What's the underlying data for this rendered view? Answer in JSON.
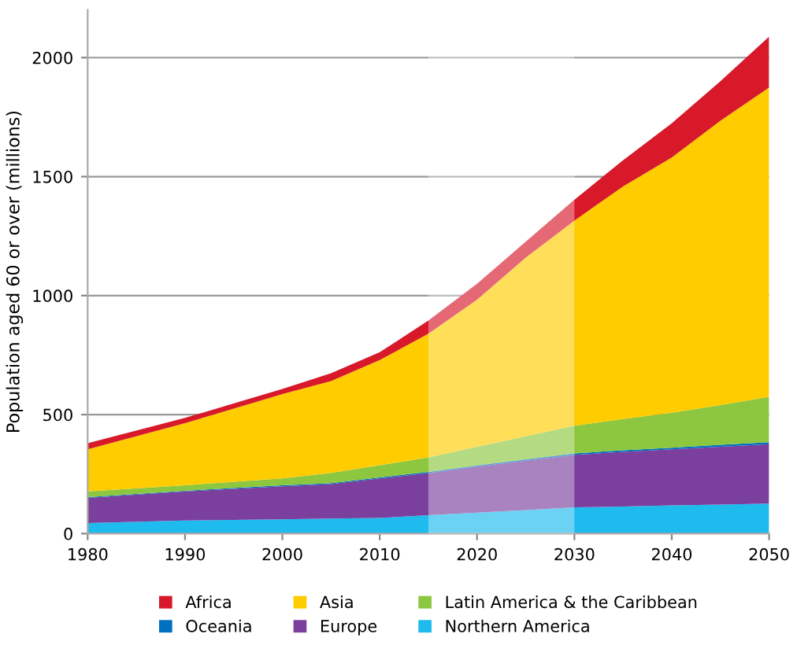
{
  "chart_data": {
    "type": "area",
    "stacked": true,
    "ylabel": "Population aged 60 or over (millions)",
    "x": [
      1980,
      1990,
      2000,
      2005,
      2010,
      2015,
      2020,
      2025,
      2030,
      2035,
      2040,
      2045,
      2050
    ],
    "series": [
      {
        "name": "Northern America",
        "color": "#1ebbee",
        "values": [
          44,
          55,
          60,
          63,
          66,
          77,
          88,
          99,
          110,
          114,
          119,
          122,
          126
        ]
      },
      {
        "name": "Europe",
        "color": "#7b3f9e",
        "values": [
          106,
          122,
          139,
          145,
          166,
          177,
          193,
          207,
          221,
          229,
          235,
          243,
          250
        ]
      },
      {
        "name": "Oceania",
        "color": "#0070c0",
        "values": [
          3,
          3,
          4,
          4,
          4,
          5,
          5,
          6,
          6,
          7,
          7,
          8,
          8
        ]
      },
      {
        "name": "Latin America & the Caribbean",
        "color": "#8dc63f",
        "values": [
          24,
          23,
          29,
          43,
          51,
          61,
          79,
          97,
          116,
          131,
          147,
          167,
          191
        ]
      },
      {
        "name": "Asia",
        "color": "#ffcc00",
        "values": [
          177,
          261,
          354,
          386,
          442,
          520,
          618,
          751,
          862,
          978,
          1072,
          1195,
          1299
        ]
      },
      {
        "name": "Africa",
        "color": "#d7192a",
        "values": [
          26,
          22,
          22,
          33,
          33,
          55,
          67,
          67,
          88,
          110,
          144,
          166,
          214
        ]
      }
    ],
    "xlim": [
      1980,
      2050
    ],
    "ylim": [
      0,
      2200
    ],
    "xticks": [
      1980,
      1990,
      2000,
      2010,
      2020,
      2030,
      2040,
      2050
    ],
    "yticks": [
      0,
      500,
      1000,
      1500,
      2000
    ],
    "bands": [
      {
        "axis": "x",
        "from": 2015,
        "to": 2030,
        "label": null,
        "color": "#ffffff"
      }
    ],
    "grid": "y",
    "legend": "bottom"
  }
}
